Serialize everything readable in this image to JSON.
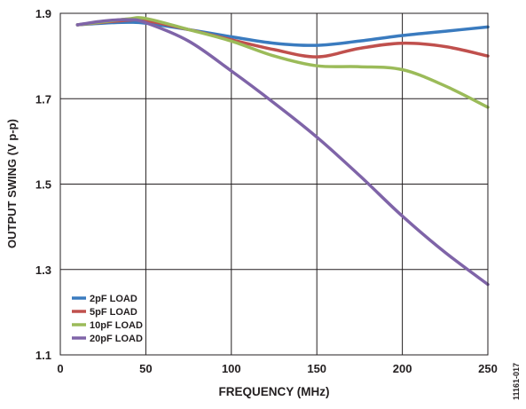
{
  "chart_data": {
    "type": "line",
    "xlabel": "FREQUENCY (MHz)",
    "ylabel": "OUTPUT SWING (V p-p)",
    "xlim": [
      0,
      250
    ],
    "ylim": [
      1.1,
      1.9
    ],
    "xticks": [
      0,
      50,
      100,
      150,
      200,
      250
    ],
    "yticks": [
      1.1,
      1.3,
      1.5,
      1.7,
      1.9
    ],
    "ytick_labels": [
      "1.1",
      "1.3",
      "1.5",
      "1.7",
      "1.9"
    ],
    "grid": true,
    "legend_position": "bottom-left",
    "figure_id": "11161-017",
    "series": [
      {
        "name": "2pF LOAD",
        "color": "#3a7bbf",
        "x": [
          10,
          25,
          40,
          50,
          75,
          100,
          125,
          150,
          175,
          200,
          225,
          250
        ],
        "y": [
          1.873,
          1.877,
          1.879,
          1.877,
          1.862,
          1.845,
          1.83,
          1.825,
          1.835,
          1.848,
          1.858,
          1.868
        ]
      },
      {
        "name": "5pF LOAD",
        "color": "#c0504d",
        "x": [
          10,
          25,
          40,
          50,
          75,
          100,
          125,
          150,
          175,
          200,
          225,
          250
        ],
        "y": [
          1.873,
          1.879,
          1.884,
          1.883,
          1.862,
          1.838,
          1.815,
          1.798,
          1.818,
          1.83,
          1.822,
          1.8
        ]
      },
      {
        "name": "10pF LOAD",
        "color": "#9bbb59",
        "x": [
          10,
          25,
          40,
          50,
          75,
          100,
          125,
          150,
          175,
          200,
          225,
          250
        ],
        "y": [
          1.873,
          1.88,
          1.887,
          1.888,
          1.862,
          1.835,
          1.8,
          1.777,
          1.775,
          1.768,
          1.73,
          1.68
        ]
      },
      {
        "name": "20pF LOAD",
        "color": "#7f64a8",
        "x": [
          10,
          25,
          40,
          50,
          75,
          100,
          125,
          150,
          175,
          200,
          225,
          250
        ],
        "y": [
          1.873,
          1.882,
          1.885,
          1.878,
          1.835,
          1.765,
          1.69,
          1.61,
          1.52,
          1.425,
          1.34,
          1.265
        ]
      }
    ]
  }
}
